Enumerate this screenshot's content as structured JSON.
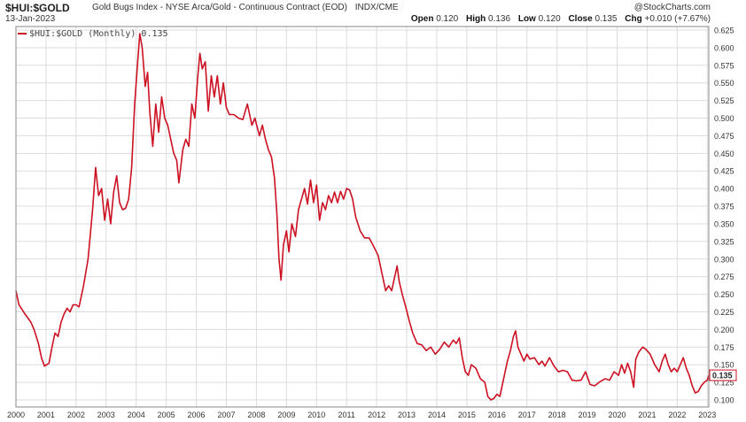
{
  "header": {
    "symbol": "$HUI:$GOLD",
    "description": "Gold Bugs Index - NYSE Arca/Gold - Continuous Contract (EOD)",
    "exchange": "INDX/CME",
    "watermark": "@StockCharts.com",
    "date": "13-Jan-2023",
    "open_label": "Open",
    "open": "0.120",
    "high_label": "High",
    "high": "0.136",
    "low_label": "Low",
    "low": "0.120",
    "close_label": "Close",
    "close": "0.135",
    "chg_label": "Chg",
    "chg": "+0.010 (+7.67%)"
  },
  "legend": {
    "label": "$HUI:$GOLD (Monthly) 0.135",
    "placement": "top-left"
  },
  "colors": {
    "line": "#cc1122",
    "grid": "#dcdcdc",
    "frame": "#888888",
    "badge": "#cc1122"
  },
  "chart_data": {
    "type": "line",
    "title": "",
    "xlabel": "",
    "ylabel": "",
    "y_axis_side": "right",
    "grid": true,
    "xlim": [
      2000.0,
      2023.05
    ],
    "ylim": [
      0.09,
      0.63
    ],
    "x_ticks": [
      "2000",
      "2001",
      "2002",
      "2003",
      "2004",
      "2005",
      "2006",
      "2007",
      "2008",
      "2009",
      "2010",
      "2011",
      "2012",
      "2013",
      "2014",
      "2015",
      "2016",
      "2017",
      "2018",
      "2019",
      "2020",
      "2021",
      "2022",
      "2023"
    ],
    "y_ticks": [
      "0.100",
      "0.125",
      "0.150",
      "0.175",
      "0.200",
      "0.225",
      "0.250",
      "0.275",
      "0.300",
      "0.325",
      "0.350",
      "0.375",
      "0.400",
      "0.425",
      "0.450",
      "0.475",
      "0.500",
      "0.525",
      "0.550",
      "0.575",
      "0.600",
      "0.625"
    ],
    "last_value_label": "0.135",
    "series": [
      {
        "name": "$HUI:$GOLD (Monthly)",
        "points": [
          [
            2000.0,
            0.255
          ],
          [
            2000.1,
            0.235
          ],
          [
            2000.3,
            0.222
          ],
          [
            2000.5,
            0.21
          ],
          [
            2000.6,
            0.2
          ],
          [
            2000.75,
            0.18
          ],
          [
            2000.85,
            0.16
          ],
          [
            2000.95,
            0.148
          ],
          [
            2001.1,
            0.152
          ],
          [
            2001.2,
            0.175
          ],
          [
            2001.3,
            0.195
          ],
          [
            2001.4,
            0.19
          ],
          [
            2001.5,
            0.21
          ],
          [
            2001.6,
            0.222
          ],
          [
            2001.7,
            0.23
          ],
          [
            2001.8,
            0.225
          ],
          [
            2001.9,
            0.235
          ],
          [
            2002.0,
            0.235
          ],
          [
            2002.1,
            0.232
          ],
          [
            2002.25,
            0.262
          ],
          [
            2002.4,
            0.3
          ],
          [
            2002.55,
            0.37
          ],
          [
            2002.65,
            0.43
          ],
          [
            2002.75,
            0.39
          ],
          [
            2002.85,
            0.4
          ],
          [
            2002.95,
            0.355
          ],
          [
            2003.05,
            0.385
          ],
          [
            2003.15,
            0.35
          ],
          [
            2003.25,
            0.395
          ],
          [
            2003.35,
            0.418
          ],
          [
            2003.45,
            0.38
          ],
          [
            2003.55,
            0.37
          ],
          [
            2003.65,
            0.372
          ],
          [
            2003.75,
            0.385
          ],
          [
            2003.85,
            0.43
          ],
          [
            2003.95,
            0.52
          ],
          [
            2004.05,
            0.58
          ],
          [
            2004.12,
            0.62
          ],
          [
            2004.2,
            0.6
          ],
          [
            2004.3,
            0.545
          ],
          [
            2004.38,
            0.565
          ],
          [
            2004.45,
            0.51
          ],
          [
            2004.55,
            0.46
          ],
          [
            2004.65,
            0.52
          ],
          [
            2004.75,
            0.48
          ],
          [
            2004.85,
            0.53
          ],
          [
            2004.95,
            0.5
          ],
          [
            2005.05,
            0.49
          ],
          [
            2005.15,
            0.47
          ],
          [
            2005.25,
            0.45
          ],
          [
            2005.35,
            0.44
          ],
          [
            2005.42,
            0.408
          ],
          [
            2005.55,
            0.455
          ],
          [
            2005.65,
            0.47
          ],
          [
            2005.75,
            0.46
          ],
          [
            2005.85,
            0.52
          ],
          [
            2005.95,
            0.5
          ],
          [
            2006.05,
            0.56
          ],
          [
            2006.12,
            0.592
          ],
          [
            2006.2,
            0.57
          ],
          [
            2006.3,
            0.58
          ],
          [
            2006.4,
            0.51
          ],
          [
            2006.5,
            0.56
          ],
          [
            2006.6,
            0.53
          ],
          [
            2006.7,
            0.56
          ],
          [
            2006.8,
            0.52
          ],
          [
            2006.9,
            0.55
          ],
          [
            2007.0,
            0.515
          ],
          [
            2007.1,
            0.505
          ],
          [
            2007.25,
            0.505
          ],
          [
            2007.4,
            0.5
          ],
          [
            2007.55,
            0.498
          ],
          [
            2007.7,
            0.52
          ],
          [
            2007.85,
            0.49
          ],
          [
            2007.95,
            0.5
          ],
          [
            2008.1,
            0.475
          ],
          [
            2008.2,
            0.49
          ],
          [
            2008.3,
            0.47
          ],
          [
            2008.4,
            0.455
          ],
          [
            2008.5,
            0.445
          ],
          [
            2008.6,
            0.415
          ],
          [
            2008.68,
            0.365
          ],
          [
            2008.75,
            0.3
          ],
          [
            2008.82,
            0.27
          ],
          [
            2008.9,
            0.32
          ],
          [
            2009.0,
            0.34
          ],
          [
            2009.08,
            0.31
          ],
          [
            2009.18,
            0.35
          ],
          [
            2009.3,
            0.332
          ],
          [
            2009.4,
            0.37
          ],
          [
            2009.5,
            0.385
          ],
          [
            2009.6,
            0.4
          ],
          [
            2009.7,
            0.378
          ],
          [
            2009.8,
            0.412
          ],
          [
            2009.9,
            0.38
          ],
          [
            2010.0,
            0.405
          ],
          [
            2010.1,
            0.355
          ],
          [
            2010.2,
            0.38
          ],
          [
            2010.3,
            0.37
          ],
          [
            2010.4,
            0.39
          ],
          [
            2010.5,
            0.38
          ],
          [
            2010.6,
            0.395
          ],
          [
            2010.7,
            0.38
          ],
          [
            2010.8,
            0.396
          ],
          [
            2010.9,
            0.385
          ],
          [
            2011.0,
            0.4
          ],
          [
            2011.1,
            0.398
          ],
          [
            2011.2,
            0.385
          ],
          [
            2011.3,
            0.36
          ],
          [
            2011.45,
            0.34
          ],
          [
            2011.6,
            0.33
          ],
          [
            2011.75,
            0.33
          ],
          [
            2011.9,
            0.318
          ],
          [
            2012.05,
            0.305
          ],
          [
            2012.2,
            0.275
          ],
          [
            2012.3,
            0.255
          ],
          [
            2012.4,
            0.262
          ],
          [
            2012.5,
            0.255
          ],
          [
            2012.6,
            0.275
          ],
          [
            2012.68,
            0.29
          ],
          [
            2012.75,
            0.268
          ],
          [
            2012.85,
            0.25
          ],
          [
            2012.95,
            0.235
          ],
          [
            2013.1,
            0.21
          ],
          [
            2013.2,
            0.195
          ],
          [
            2013.35,
            0.18
          ],
          [
            2013.5,
            0.178
          ],
          [
            2013.65,
            0.17
          ],
          [
            2013.8,
            0.175
          ],
          [
            2013.95,
            0.165
          ],
          [
            2014.1,
            0.172
          ],
          [
            2014.25,
            0.182
          ],
          [
            2014.4,
            0.175
          ],
          [
            2014.55,
            0.185
          ],
          [
            2014.65,
            0.18
          ],
          [
            2014.75,
            0.188
          ],
          [
            2014.85,
            0.16
          ],
          [
            2014.95,
            0.14
          ],
          [
            2015.05,
            0.135
          ],
          [
            2015.15,
            0.15
          ],
          [
            2015.3,
            0.145
          ],
          [
            2015.45,
            0.13
          ],
          [
            2015.6,
            0.125
          ],
          [
            2015.7,
            0.105
          ],
          [
            2015.8,
            0.1
          ],
          [
            2015.9,
            0.102
          ],
          [
            2016.0,
            0.108
          ],
          [
            2016.1,
            0.105
          ],
          [
            2016.2,
            0.125
          ],
          [
            2016.35,
            0.155
          ],
          [
            2016.45,
            0.17
          ],
          [
            2016.55,
            0.19
          ],
          [
            2016.62,
            0.198
          ],
          [
            2016.7,
            0.175
          ],
          [
            2016.8,
            0.165
          ],
          [
            2016.9,
            0.155
          ],
          [
            2017.0,
            0.165
          ],
          [
            2017.1,
            0.158
          ],
          [
            2017.25,
            0.16
          ],
          [
            2017.4,
            0.15
          ],
          [
            2017.5,
            0.155
          ],
          [
            2017.6,
            0.148
          ],
          [
            2017.75,
            0.16
          ],
          [
            2017.9,
            0.148
          ],
          [
            2018.05,
            0.14
          ],
          [
            2018.2,
            0.142
          ],
          [
            2018.35,
            0.14
          ],
          [
            2018.5,
            0.128
          ],
          [
            2018.65,
            0.127
          ],
          [
            2018.8,
            0.128
          ],
          [
            2018.95,
            0.14
          ],
          [
            2019.1,
            0.122
          ],
          [
            2019.25,
            0.12
          ],
          [
            2019.4,
            0.125
          ],
          [
            2019.6,
            0.13
          ],
          [
            2019.75,
            0.128
          ],
          [
            2019.9,
            0.14
          ],
          [
            2020.05,
            0.135
          ],
          [
            2020.15,
            0.15
          ],
          [
            2020.25,
            0.138
          ],
          [
            2020.35,
            0.152
          ],
          [
            2020.45,
            0.14
          ],
          [
            2020.55,
            0.118
          ],
          [
            2020.62,
            0.158
          ],
          [
            2020.72,
            0.168
          ],
          [
            2020.85,
            0.175
          ],
          [
            2020.95,
            0.172
          ],
          [
            2021.1,
            0.165
          ],
          [
            2021.25,
            0.15
          ],
          [
            2021.4,
            0.14
          ],
          [
            2021.5,
            0.155
          ],
          [
            2021.6,
            0.165
          ],
          [
            2021.7,
            0.15
          ],
          [
            2021.8,
            0.14
          ],
          [
            2021.9,
            0.145
          ],
          [
            2022.0,
            0.14
          ],
          [
            2022.1,
            0.15
          ],
          [
            2022.2,
            0.16
          ],
          [
            2022.3,
            0.145
          ],
          [
            2022.4,
            0.135
          ],
          [
            2022.5,
            0.12
          ],
          [
            2022.6,
            0.11
          ],
          [
            2022.7,
            0.112
          ],
          [
            2022.8,
            0.12
          ],
          [
            2022.9,
            0.125
          ],
          [
            2023.0,
            0.128
          ],
          [
            2023.05,
            0.135
          ]
        ]
      }
    ]
  }
}
